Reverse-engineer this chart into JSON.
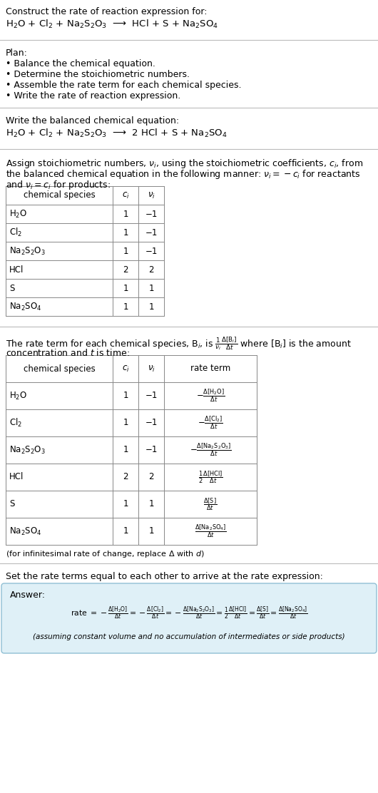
{
  "bg_color": "#ffffff",
  "text_color": "#000000",
  "title_line1": "Construct the rate of reaction expression for:",
  "reaction_unbalanced": "H$_2$O + Cl$_2$ + Na$_2$S$_2$O$_3$  ⟶  HCl + S + Na$_2$SO$_4$",
  "plan_header": "Plan:",
  "plan_items": [
    "• Balance the chemical equation.",
    "• Determine the stoichiometric numbers.",
    "• Assemble the rate term for each chemical species.",
    "• Write the rate of reaction expression."
  ],
  "balanced_header": "Write the balanced chemical equation:",
  "reaction_balanced": "H$_2$O + Cl$_2$ + Na$_2$S$_2$O$_3$  ⟶  2 HCl + S + Na$_2$SO$_4$",
  "stoich_intro_1": "Assign stoichiometric numbers, $\\nu_i$, using the stoichiometric coefficients, $c_i$, from",
  "stoich_intro_2": "the balanced chemical equation in the following manner: $\\nu_i = -c_i$ for reactants",
  "stoich_intro_3": "and $\\nu_i = c_i$ for products:",
  "table1_headers": [
    "chemical species",
    "$c_i$",
    "$\\nu_i$"
  ],
  "table1_data": [
    [
      "H$_2$O",
      "1",
      "−1"
    ],
    [
      "Cl$_2$",
      "1",
      "−1"
    ],
    [
      "Na$_2$S$_2$O$_3$",
      "1",
      "−1"
    ],
    [
      "HCl",
      "2",
      "2"
    ],
    [
      "S",
      "1",
      "1"
    ],
    [
      "Na$_2$SO$_4$",
      "1",
      "1"
    ]
  ],
  "rate_intro_1": "The rate term for each chemical species, B$_i$, is $\\frac{1}{\\nu_i}\\frac{\\Delta[\\mathrm{B}_i]}{\\Delta t}$ where [B$_i$] is the amount",
  "rate_intro_2": "concentration and $t$ is time:",
  "table2_headers": [
    "chemical species",
    "$c_i$",
    "$\\nu_i$",
    "rate term"
  ],
  "table2_data": [
    [
      "H$_2$O",
      "1",
      "−1",
      "$-\\frac{\\Delta[\\mathrm{H_2O}]}{\\Delta t}$"
    ],
    [
      "Cl$_2$",
      "1",
      "−1",
      "$-\\frac{\\Delta[\\mathrm{Cl_2}]}{\\Delta t}$"
    ],
    [
      "Na$_2$S$_2$O$_3$",
      "1",
      "−1",
      "$-\\frac{\\Delta[\\mathrm{Na_2S_2O_3}]}{\\Delta t}$"
    ],
    [
      "HCl",
      "2",
      "2",
      "$\\frac{1}{2}\\frac{\\Delta[\\mathrm{HCl}]}{\\Delta t}$"
    ],
    [
      "S",
      "1",
      "1",
      "$\\frac{\\Delta[\\mathrm{S}]}{\\Delta t}$"
    ],
    [
      "Na$_2$SO$_4$",
      "1",
      "1",
      "$\\frac{\\Delta[\\mathrm{Na_2SO_4}]}{\\Delta t}$"
    ]
  ],
  "infinitesimal_note": "(for infinitesimal rate of change, replace Δ with $d$)",
  "set_equal_text": "Set the rate terms equal to each other to arrive at the rate expression:",
  "answer_label": "Answer:",
  "answer_box_color": "#dff0f7",
  "answer_box_border": "#90bfd4",
  "rate_expression": "rate $= -\\frac{\\Delta[\\mathrm{H_2O}]}{\\Delta t} = -\\frac{\\Delta[\\mathrm{Cl_2}]}{\\Delta t} = -\\frac{\\Delta[\\mathrm{Na_2S_2O_3}]}{\\Delta t} = \\frac{1}{2}\\frac{\\Delta[\\mathrm{HCl}]}{\\Delta t} = \\frac{\\Delta[\\mathrm{S}]}{\\Delta t} = \\frac{\\Delta[\\mathrm{Na_2SO_4}]}{\\Delta t}$",
  "assuming_note": "(assuming constant volume and no accumulation of intermediates or side products)"
}
